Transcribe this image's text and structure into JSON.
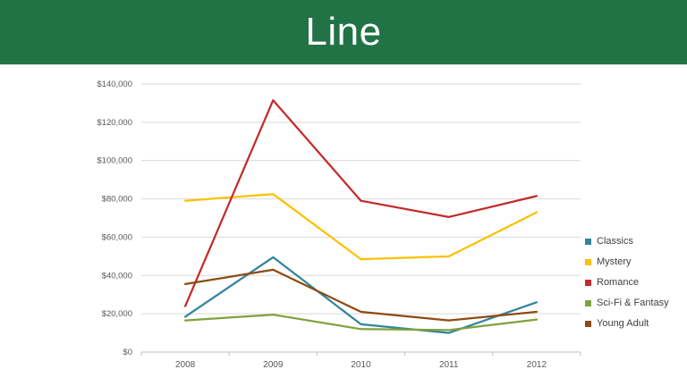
{
  "header": {
    "title": "Line",
    "background_color": "#217346",
    "text_color": "#FFFFFF"
  },
  "chart_data": {
    "type": "line",
    "title": "",
    "categories": [
      "2008",
      "2009",
      "2010",
      "2011",
      "2012"
    ],
    "series": [
      {
        "name": "Classics",
        "color": "#31859C",
        "values": [
          18500,
          49500,
          14500,
          10000,
          26000
        ]
      },
      {
        "name": "Mystery",
        "color": "#FFC000",
        "values": [
          79000,
          82500,
          48500,
          50000,
          73000
        ]
      },
      {
        "name": "Romance",
        "color": "#C32B2B",
        "values": [
          24000,
          131500,
          79000,
          70500,
          81500
        ]
      },
      {
        "name": "Sci-Fi & Fantasy",
        "color": "#7FA23C",
        "values": [
          16500,
          19500,
          12000,
          11500,
          17000
        ]
      },
      {
        "name": "Young Adult",
        "color": "#8E4A10",
        "values": [
          35500,
          43000,
          21000,
          16500,
          21000
        ]
      }
    ],
    "xlabel": "",
    "ylabel": "",
    "y_axis": {
      "min": 0,
      "max": 140000,
      "step": 20000,
      "tick_labels": [
        "$0",
        "$20,000",
        "$40,000",
        "$60,000",
        "$80,000",
        "$100,000",
        "$120,000",
        "$140,000"
      ]
    },
    "grid": true,
    "legend_position": "right",
    "colors": {
      "gridline": "#D9D9D9",
      "axis_line": "#BFBFBF",
      "tick_label": "#595959",
      "legend_text": "#404040"
    }
  }
}
